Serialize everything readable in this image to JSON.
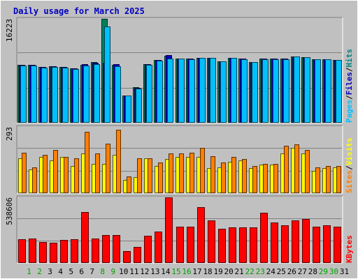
{
  "chart_data": [
    {
      "type": "bar",
      "title": "Daily usage for March 2025",
      "panel": "hits-files-pages",
      "y_max_label": "16223",
      "ylim": [
        0,
        16223
      ],
      "legend": [
        {
          "name": "Pages",
          "color": "#00c0ff"
        },
        {
          "name": "Files",
          "color": "#0000c0"
        },
        {
          "name": "Hits",
          "color": "#008080"
        }
      ],
      "legend_separator": "/",
      "categories": [
        "1",
        "2",
        "3",
        "4",
        "5",
        "6",
        "7",
        "8",
        "9",
        "10",
        "11",
        "12",
        "13",
        "14",
        "15",
        "16",
        "17",
        "18",
        "19",
        "20",
        "21",
        "22",
        "23",
        "24",
        "25",
        "26",
        "27",
        "28",
        "29",
        "30",
        "31"
      ],
      "series": [
        {
          "name": "Hits",
          "color": "#00805c",
          "values": [
            9000,
            9000,
            8700,
            8800,
            8700,
            8500,
            9000,
            9500,
            16223,
            9000,
            4300,
            5600,
            9200,
            9800,
            10400,
            10000,
            10000,
            10100,
            10100,
            9600,
            10100,
            10000,
            9500,
            10000,
            10000,
            10000,
            10300,
            10200,
            9900,
            9900,
            9800
          ]
        },
        {
          "name": "Files",
          "color": "#0000c0",
          "values": [
            9000,
            9000,
            8700,
            8800,
            8700,
            8500,
            9200,
            9400,
            9400,
            9100,
            4300,
            5400,
            9100,
            9800,
            10600,
            10000,
            10000,
            10100,
            10100,
            9600,
            10100,
            10000,
            9500,
            10000,
            10000,
            10000,
            10300,
            10200,
            9900,
            9900,
            9800
          ]
        },
        {
          "name": "Pages",
          "color": "#00c0ff",
          "values": [
            8900,
            8900,
            8600,
            8700,
            8600,
            8400,
            8900,
            9200,
            15000,
            8800,
            4300,
            5300,
            9000,
            9700,
            10000,
            10000,
            9900,
            10100,
            10100,
            9600,
            10100,
            9900,
            9500,
            9900,
            9900,
            9900,
            10300,
            10200,
            9900,
            9900,
            9800
          ]
        }
      ]
    },
    {
      "type": "bar",
      "panel": "visits-sites",
      "y_max_label": "293",
      "ylim": [
        0,
        293
      ],
      "legend": [
        {
          "name": "Sites",
          "color": "#ff8000"
        },
        {
          "name": "Visits",
          "color": "#ffff00"
        }
      ],
      "legend_separator": "/",
      "categories": [
        "1",
        "2",
        "3",
        "4",
        "5",
        "6",
        "7",
        "8",
        "9",
        "10",
        "11",
        "12",
        "13",
        "14",
        "15",
        "16",
        "17",
        "18",
        "19",
        "20",
        "21",
        "22",
        "23",
        "24",
        "25",
        "26",
        "27",
        "28",
        "29",
        "30",
        "31"
      ],
      "series": [
        {
          "name": "Visits",
          "color": "#ffff00",
          "values": [
            155,
            105,
            160,
            145,
            160,
            120,
            175,
            130,
            130,
            170,
            60,
            70,
            155,
            120,
            150,
            160,
            160,
            160,
            110,
            115,
            140,
            145,
            110,
            125,
            125,
            175,
            200,
            175,
            100,
            110,
            115
          ]
        },
        {
          "name": "Sites",
          "color": "#ff8000",
          "values": [
            180,
            115,
            170,
            190,
            160,
            155,
            270,
            175,
            220,
            280,
            75,
            155,
            155,
            135,
            175,
            175,
            180,
            200,
            165,
            135,
            160,
            150,
            120,
            130,
            130,
            210,
            215,
            190,
            115,
            120,
            120
          ]
        }
      ]
    },
    {
      "type": "bar",
      "panel": "kbytes",
      "y_max_label": "538606",
      "ylim": [
        0,
        538606
      ],
      "legend": [
        {
          "name": "KBytes",
          "color": "#ff0000"
        }
      ],
      "categories": [
        "1",
        "2",
        "3",
        "4",
        "5",
        "6",
        "7",
        "8",
        "9",
        "10",
        "11",
        "12",
        "13",
        "14",
        "15",
        "16",
        "17",
        "18",
        "19",
        "20",
        "21",
        "22",
        "23",
        "24",
        "25",
        "26",
        "27",
        "28",
        "29",
        "30",
        "31"
      ],
      "series": [
        {
          "name": "KBytes",
          "color": "#ff0000",
          "values": [
            195000,
            200000,
            170000,
            165000,
            190000,
            195000,
            420000,
            200000,
            230000,
            230000,
            100000,
            130000,
            225000,
            260000,
            538606,
            300000,
            300000,
            460000,
            350000,
            280000,
            290000,
            290000,
            290000,
            410000,
            330000,
            310000,
            350000,
            360000,
            300000,
            310000,
            300000
          ]
        }
      ]
    }
  ],
  "weekend_days": [
    "1",
    "2",
    "8",
    "9",
    "15",
    "16",
    "22",
    "23",
    "29",
    "30"
  ],
  "colors": {
    "background": "#c0c0c0",
    "plot_background": "#c0c0c0",
    "title": "#0000c0",
    "grid": "#808080",
    "weekday_label": "#000000",
    "weekend_label": "#00a000"
  }
}
